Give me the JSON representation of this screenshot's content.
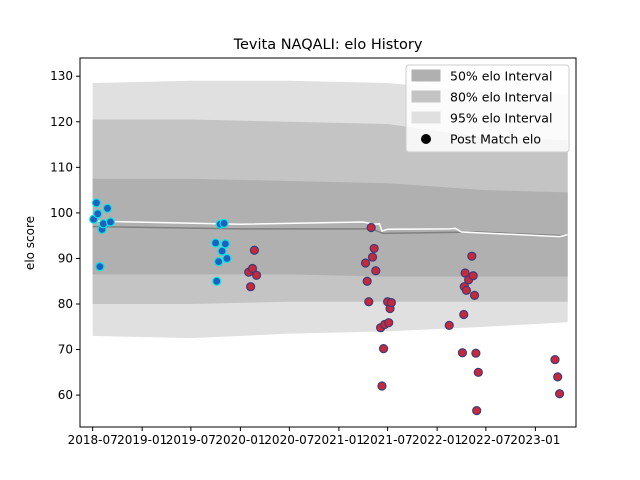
{
  "chart_data": {
    "type": "scatter",
    "title": "Tevita NAQALI: elo History",
    "xlabel": "",
    "ylabel": "elo score",
    "xlim": [
      "2018-05-15",
      "2023-06-01"
    ],
    "ylim": [
      53,
      134
    ],
    "grid": false,
    "legend_position": "top-right",
    "x_ticks": [
      "2018-07",
      "2019-01",
      "2019-07",
      "2020-01",
      "2020-07",
      "2021-01",
      "2021-07",
      "2022-01",
      "2022-07",
      "2023-01"
    ],
    "y_ticks": [
      60,
      70,
      80,
      90,
      100,
      110,
      120,
      130
    ],
    "legend": [
      {
        "label": "50% elo Interval",
        "kind": "patch",
        "color": "#b0b0b0"
      },
      {
        "label": "80% elo Interval",
        "kind": "patch",
        "color": "#c4c4c4"
      },
      {
        "label": "95% elo Interval",
        "kind": "patch",
        "color": "#e0e0e0"
      },
      {
        "label": "Post Match elo",
        "kind": "marker",
        "color": "#000000"
      }
    ],
    "colors": {
      "band50": "#b0b0b0",
      "band80": "#c4c4c4",
      "band95": "#e0e0e0",
      "mean_line": "#808080",
      "median_line": "#ffffff",
      "early_points_fill": "#1f5fbf",
      "early_points_edge": "#00e5e5",
      "late_points_fill": "#c8283c",
      "late_points_edge": "#3c3c78"
    },
    "mean_series": {
      "name": "",
      "x": [
        "2018-07-01",
        "2020-01-01",
        "2021-05-01",
        "2021-06-15",
        "2022-06-01",
        "2023-04-01",
        "2023-05-01"
      ],
      "y": [
        97.0,
        96.5,
        96.5,
        95.5,
        95.8,
        95.0,
        95.1
      ]
    },
    "median_series": {
      "name": "",
      "x": [
        "2018-07-01",
        "2020-01-01",
        "2021-04-01",
        "2021-05-10",
        "2021-06-01",
        "2021-06-10",
        "2021-07-01",
        "2022-02-15",
        "2022-03-10",
        "2022-04-01",
        "2023-04-01",
        "2023-05-01"
      ],
      "y": [
        98.2,
        97.5,
        98.0,
        97.5,
        97.6,
        96.0,
        96.4,
        96.5,
        96.6,
        95.8,
        94.8,
        95.2
      ]
    },
    "bands": [
      {
        "name": "95% elo Interval",
        "lower": [
          73.0,
          72.5,
          73.5,
          74.0,
          75.0,
          76.0
        ],
        "upper": [
          128.5,
          129.0,
          129.0,
          128.5,
          126.5,
          126.0
        ]
      },
      {
        "name": "80% elo Interval",
        "lower": [
          80.0,
          80.0,
          80.5,
          80.5,
          80.5,
          80.5
        ],
        "upper": [
          120.5,
          120.5,
          120.0,
          119.5,
          116.5,
          116.0
        ]
      },
      {
        "name": "50% elo Interval",
        "lower": [
          86.5,
          86.5,
          86.5,
          86.0,
          86.0,
          86.0
        ],
        "upper": [
          107.5,
          107.5,
          107.0,
          106.5,
          105.0,
          104.5
        ]
      }
    ],
    "band_x": [
      "2018-07-01",
      "2019-07-01",
      "2020-07-01",
      "2021-07-01",
      "2022-07-01",
      "2023-05-01"
    ],
    "points": [
      {
        "x": "2018-07-05",
        "y": 98.6,
        "group": "early"
      },
      {
        "x": "2018-07-15",
        "y": 102.2,
        "group": "early"
      },
      {
        "x": "2018-07-20",
        "y": 99.8,
        "group": "early"
      },
      {
        "x": "2018-07-28",
        "y": 88.2,
        "group": "early"
      },
      {
        "x": "2018-08-05",
        "y": 96.4,
        "group": "early"
      },
      {
        "x": "2018-08-10",
        "y": 97.6,
        "group": "early"
      },
      {
        "x": "2018-08-25",
        "y": 101.0,
        "group": "early"
      },
      {
        "x": "2018-09-05",
        "y": 98.0,
        "group": "early"
      },
      {
        "x": "2019-10-01",
        "y": 93.4,
        "group": "early"
      },
      {
        "x": "2019-10-05",
        "y": 85.0,
        "group": "early"
      },
      {
        "x": "2019-10-12",
        "y": 89.3,
        "group": "early"
      },
      {
        "x": "2019-10-18",
        "y": 97.5,
        "group": "early"
      },
      {
        "x": "2019-10-25",
        "y": 91.6,
        "group": "early"
      },
      {
        "x": "2019-11-01",
        "y": 97.7,
        "group": "early"
      },
      {
        "x": "2019-11-06",
        "y": 93.2,
        "group": "early"
      },
      {
        "x": "2019-11-12",
        "y": 90.0,
        "group": "early"
      },
      {
        "x": "2020-02-01",
        "y": 87.0,
        "group": "late"
      },
      {
        "x": "2020-02-08",
        "y": 83.8,
        "group": "late"
      },
      {
        "x": "2020-02-15",
        "y": 87.8,
        "group": "late"
      },
      {
        "x": "2020-02-22",
        "y": 91.8,
        "group": "late"
      },
      {
        "x": "2020-03-01",
        "y": 86.3,
        "group": "late"
      },
      {
        "x": "2021-04-10",
        "y": 89.0,
        "group": "late"
      },
      {
        "x": "2021-04-16",
        "y": 85.0,
        "group": "late"
      },
      {
        "x": "2021-04-22",
        "y": 80.5,
        "group": "late"
      },
      {
        "x": "2021-05-01",
        "y": 96.8,
        "group": "late"
      },
      {
        "x": "2021-05-06",
        "y": 90.3,
        "group": "late"
      },
      {
        "x": "2021-05-12",
        "y": 92.2,
        "group": "late"
      },
      {
        "x": "2021-05-18",
        "y": 87.3,
        "group": "late"
      },
      {
        "x": "2021-06-05",
        "y": 74.8,
        "group": "late"
      },
      {
        "x": "2021-06-10",
        "y": 62.0,
        "group": "late"
      },
      {
        "x": "2021-06-16",
        "y": 70.2,
        "group": "late"
      },
      {
        "x": "2021-06-20",
        "y": 75.5,
        "group": "late"
      },
      {
        "x": "2021-07-01",
        "y": 80.5,
        "group": "late"
      },
      {
        "x": "2021-07-05",
        "y": 75.9,
        "group": "late"
      },
      {
        "x": "2021-07-10",
        "y": 79.0,
        "group": "late"
      },
      {
        "x": "2021-07-15",
        "y": 80.3,
        "group": "late"
      },
      {
        "x": "2022-02-15",
        "y": 75.3,
        "group": "late"
      },
      {
        "x": "2022-04-05",
        "y": 69.3,
        "group": "late"
      },
      {
        "x": "2022-04-10",
        "y": 77.7,
        "group": "late"
      },
      {
        "x": "2022-04-12",
        "y": 83.8,
        "group": "late"
      },
      {
        "x": "2022-04-15",
        "y": 86.8,
        "group": "late"
      },
      {
        "x": "2022-04-20",
        "y": 83.0,
        "group": "late"
      },
      {
        "x": "2022-04-28",
        "y": 85.3,
        "group": "late"
      },
      {
        "x": "2022-05-10",
        "y": 90.5,
        "group": "late"
      },
      {
        "x": "2022-05-15",
        "y": 86.2,
        "group": "late"
      },
      {
        "x": "2022-05-20",
        "y": 81.9,
        "group": "late"
      },
      {
        "x": "2022-05-25",
        "y": 69.2,
        "group": "late"
      },
      {
        "x": "2022-05-28",
        "y": 56.6,
        "group": "late"
      },
      {
        "x": "2022-06-03",
        "y": 65.0,
        "group": "late"
      },
      {
        "x": "2023-03-15",
        "y": 67.8,
        "group": "late"
      },
      {
        "x": "2023-03-25",
        "y": 64.0,
        "group": "late"
      },
      {
        "x": "2023-04-01",
        "y": 60.3,
        "group": "late"
      }
    ]
  }
}
